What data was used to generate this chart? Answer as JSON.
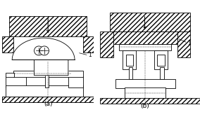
{
  "bg_color": "#ffffff",
  "line_color": "#000000",
  "label_a": "(a)",
  "label_b": "(b)",
  "fig_width": 2.84,
  "fig_height": 1.7,
  "dpi": 100
}
